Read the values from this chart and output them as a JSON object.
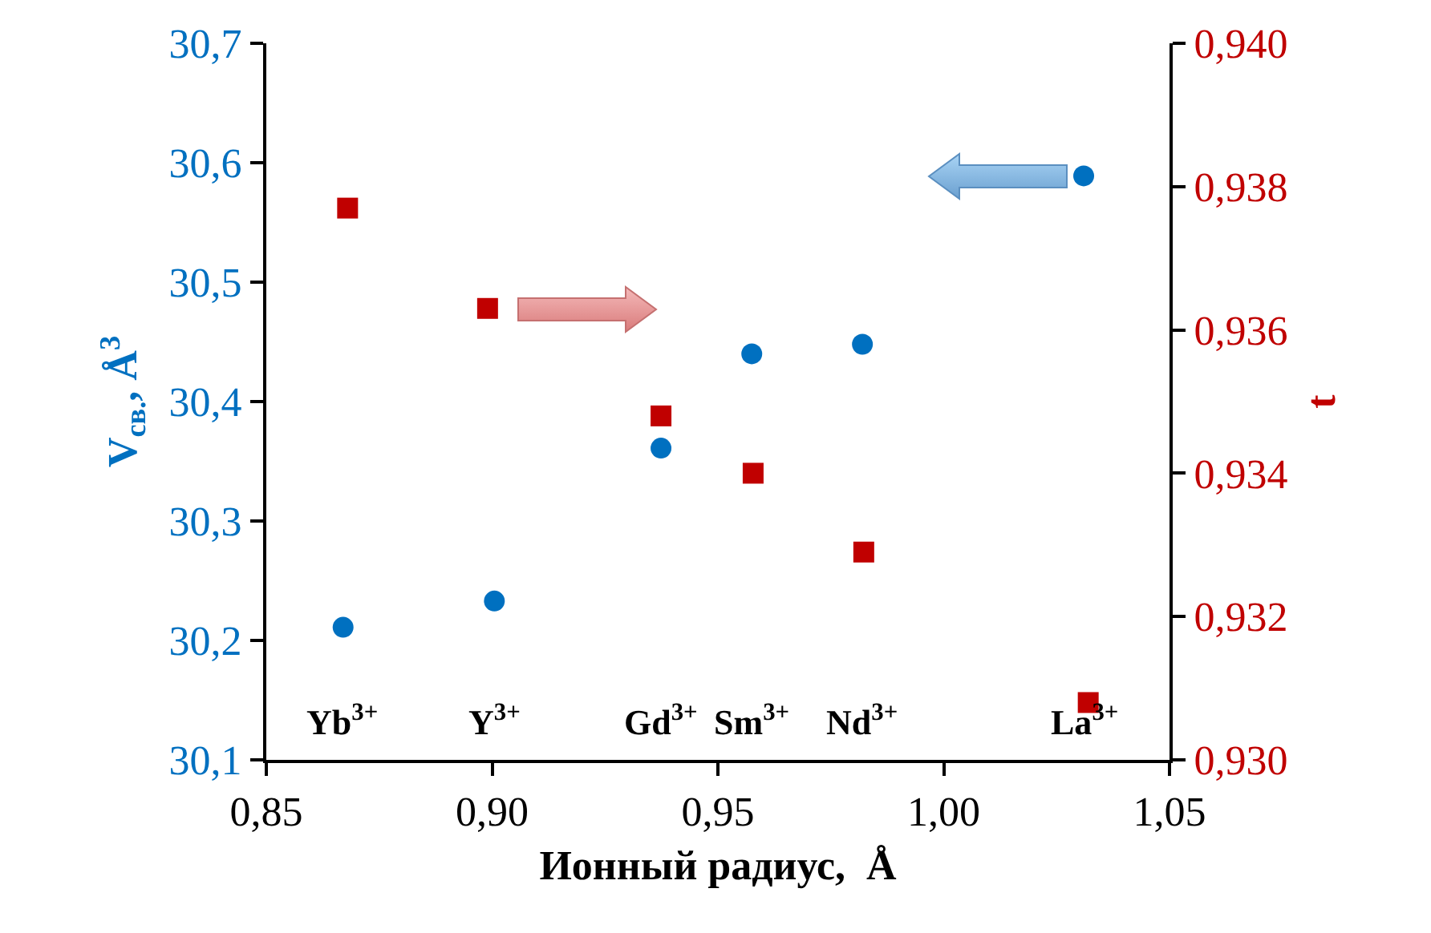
{
  "chart_data": {
    "type": "scatter",
    "xlabel": "Ионный радиус,  Å",
    "ylabel": "V$_{св.}$, Å$^{3}$",
    "y2label": "t",
    "xlim": [
      0.85,
      1.05
    ],
    "xticks": [
      {
        "value": 0.85,
        "label": "0,85"
      },
      {
        "value": 0.9,
        "label": "0,90"
      },
      {
        "value": 0.95,
        "label": "0,95"
      },
      {
        "value": 1.0,
        "label": "1,00"
      },
      {
        "value": 1.05,
        "label": "1,05"
      }
    ],
    "ylim": [
      30.1,
      30.7
    ],
    "yticks": [
      {
        "value": 30.1,
        "label": "30,1"
      },
      {
        "value": 30.2,
        "label": "30,2"
      },
      {
        "value": 30.3,
        "label": "30,3"
      },
      {
        "value": 30.4,
        "label": "30,4"
      },
      {
        "value": 30.5,
        "label": "30,5"
      },
      {
        "value": 30.6,
        "label": "30,6"
      },
      {
        "value": 30.7,
        "label": "30,7"
      }
    ],
    "y2lim": [
      0.93,
      0.94
    ],
    "y2ticks": [
      {
        "value": 0.93,
        "label": "0,930"
      },
      {
        "value": 0.932,
        "label": "0,932"
      },
      {
        "value": 0.934,
        "label": "0,934"
      },
      {
        "value": 0.936,
        "label": "0,936"
      },
      {
        "value": 0.938,
        "label": "0,938"
      },
      {
        "value": 0.94,
        "label": "0,940"
      }
    ],
    "grid": false,
    "series": [
      {
        "color": "#0070c0",
        "marker": "circle",
        "x": [
          0.867,
          0.9005,
          0.9374,
          0.9575,
          0.982,
          1.031
        ],
        "values": [
          30.211,
          30.233,
          30.361,
          30.44,
          30.448,
          30.589
        ]
      },
      {
        "color": "#c00000",
        "marker": "square",
        "axis": "y2",
        "x": [
          0.868,
          0.899,
          0.9374,
          0.9578,
          0.9823,
          1.032
        ],
        "values": [
          0.9377,
          0.9363,
          0.9348,
          0.934,
          0.9329,
          0.9308
        ]
      }
    ],
    "annotations": [
      "Yb$^{3+}$",
      "Y$^{3+}$",
      "Gd$^{3+}$",
      "Sm$^{3+}$",
      "Nd$^{3+}$",
      "La$^{3+}$"
    ]
  }
}
